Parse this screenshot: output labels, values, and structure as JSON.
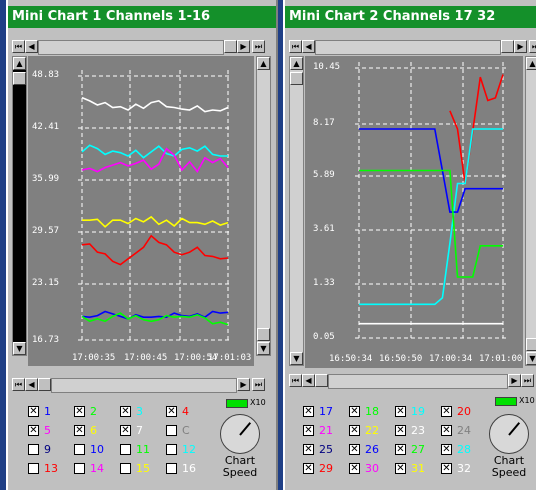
{
  "windows": [
    {
      "title": "Mini Chart 1 Channels 1-16",
      "y_ticks": [
        "48.83",
        "42.41",
        "35.99",
        "29.57",
        "23.15",
        "16.73"
      ],
      "x_ticks": [
        "17:00:35",
        "17:00:45",
        "17:00:54",
        "17:01:03"
      ],
      "channels": [
        {
          "label": "1",
          "checked": true,
          "color": "#0000ff"
        },
        {
          "label": "2",
          "checked": true,
          "color": "#00ff00"
        },
        {
          "label": "3",
          "checked": true,
          "color": "#00ffff"
        },
        {
          "label": "4",
          "checked": true,
          "color": "#ff0000"
        },
        {
          "label": "5",
          "checked": true,
          "color": "#ff00ff"
        },
        {
          "label": "6",
          "checked": true,
          "color": "#ffff00"
        },
        {
          "label": "7",
          "checked": true,
          "color": "#ffffff"
        },
        {
          "label": "C",
          "checked": false,
          "color": "#808080"
        },
        {
          "label": "9",
          "checked": false,
          "color": "#000080"
        },
        {
          "label": "10",
          "checked": false,
          "color": "#0000ff"
        },
        {
          "label": "11",
          "checked": false,
          "color": "#00ff00"
        },
        {
          "label": "12",
          "checked": false,
          "color": "#00ffff"
        },
        {
          "label": "13",
          "checked": false,
          "color": "#ff0000"
        },
        {
          "label": "14",
          "checked": false,
          "color": "#ff00ff"
        },
        {
          "label": "15",
          "checked": false,
          "color": "#ffff00"
        },
        {
          "label": "16",
          "checked": false,
          "color": "#ffffff"
        }
      ],
      "speed_label_1": "Chart",
      "speed_label_2": "Speed",
      "x10_label": "X10"
    },
    {
      "title": "Mini Chart 2 Channels 17 32",
      "y_ticks": [
        "10.45",
        "8.17",
        "5.89",
        "3.61",
        "1.33",
        "0.05"
      ],
      "x_ticks": [
        "16:50:34",
        "16:50:50",
        "17:00:34",
        "17:01:00"
      ],
      "channels": [
        {
          "label": "17",
          "checked": true,
          "color": "#0000ff"
        },
        {
          "label": "18",
          "checked": true,
          "color": "#00ff00"
        },
        {
          "label": "19",
          "checked": true,
          "color": "#00ffff"
        },
        {
          "label": "20",
          "checked": true,
          "color": "#ff0000"
        },
        {
          "label": "21",
          "checked": true,
          "color": "#ff00ff"
        },
        {
          "label": "22",
          "checked": true,
          "color": "#ffff00"
        },
        {
          "label": "23",
          "checked": true,
          "color": "#ffffff"
        },
        {
          "label": "24",
          "checked": true,
          "color": "#808080"
        },
        {
          "label": "25",
          "checked": true,
          "color": "#000080"
        },
        {
          "label": "26",
          "checked": true,
          "color": "#0000ff"
        },
        {
          "label": "27",
          "checked": true,
          "color": "#00ff00"
        },
        {
          "label": "28",
          "checked": true,
          "color": "#00ffff"
        },
        {
          "label": "29",
          "checked": true,
          "color": "#ff0000"
        },
        {
          "label": "30",
          "checked": true,
          "color": "#ff00ff"
        },
        {
          "label": "31",
          "checked": true,
          "color": "#ffff00"
        },
        {
          "label": "32",
          "checked": true,
          "color": "#ffffff"
        }
      ],
      "speed_label_1": "Chart",
      "speed_label_2": "Speed",
      "x10_label": "X10"
    }
  ],
  "chart_data": [
    {
      "type": "line",
      "ylim": [
        16.73,
        48.83
      ],
      "x": [
        0,
        1,
        2,
        3,
        4,
        5,
        6,
        7,
        8,
        9,
        10,
        11,
        12,
        13,
        14,
        15,
        16,
        17,
        18,
        19
      ],
      "series": [
        {
          "color": "#ffffff",
          "values": [
            46.2,
            45.8,
            45.3,
            45.6,
            45.0,
            45.1,
            44.7,
            45.4,
            44.9,
            45.6,
            45.8,
            45.1,
            45.0,
            44.8,
            44.7,
            45.2,
            44.5,
            44.7,
            44.6,
            45.0
          ]
        },
        {
          "color": "#00ffff",
          "values": [
            39.6,
            40.4,
            40.0,
            39.3,
            39.7,
            39.5,
            39.1,
            39.8,
            38.9,
            39.6,
            40.3,
            39.4,
            39.1,
            39.9,
            40.1,
            39.7,
            40.3,
            39.3,
            39.1,
            39.1
          ]
        },
        {
          "color": "#ff00ff",
          "values": [
            37.4,
            37.6,
            37.2,
            37.7,
            38.0,
            38.3,
            37.9,
            38.2,
            38.6,
            37.5,
            38.1,
            40.0,
            39.2,
            37.4,
            38.4,
            37.2,
            38.9,
            38.3,
            38.8,
            37.7
          ]
        },
        {
          "color": "#ffff00",
          "values": [
            31.3,
            31.3,
            31.4,
            30.5,
            31.3,
            31.3,
            30.9,
            31.5,
            31.1,
            31.7,
            30.8,
            31.3,
            30.6,
            31.5,
            31.0,
            31.0,
            30.8,
            31.2,
            30.7,
            31.0
          ]
        },
        {
          "color": "#ff0000",
          "values": [
            28.3,
            28.4,
            27.4,
            27.2,
            26.3,
            25.9,
            26.6,
            27.3,
            28.0,
            29.4,
            28.6,
            28.3,
            27.4,
            27.1,
            27.4,
            28.0,
            27.0,
            26.9,
            26.6,
            26.7
          ]
        },
        {
          "color": "#0000ff",
          "values": [
            19.6,
            19.5,
            19.7,
            20.2,
            19.9,
            19.6,
            19.3,
            19.8,
            19.5,
            19.5,
            19.6,
            19.5,
            20.0,
            19.7,
            19.6,
            19.9,
            19.5,
            20.2,
            20.0,
            20.1
          ]
        },
        {
          "color": "#00ff00",
          "values": [
            19.6,
            19.0,
            19.3,
            19.0,
            19.6,
            20.0,
            19.3,
            19.7,
            19.2,
            19.0,
            19.2,
            19.7,
            19.5,
            19.6,
            19.5,
            19.8,
            19.4,
            18.7,
            18.9,
            18.6
          ]
        }
      ]
    },
    {
      "type": "line",
      "ylim": [
        0.05,
        10.45
      ],
      "x": [
        0,
        1,
        2,
        3,
        4,
        5,
        6,
        7,
        8,
        9,
        10,
        11,
        12,
        13,
        14,
        15,
        16,
        17,
        18,
        19
      ],
      "series": [
        {
          "color": "#ff0000",
          "values": [
            null,
            null,
            null,
            null,
            null,
            null,
            null,
            null,
            null,
            null,
            null,
            null,
            8.8,
            8.1,
            6.0,
            8.0,
            10.1,
            9.2,
            9.3,
            10.2
          ]
        },
        {
          "color": "#00ffff",
          "values": [
            1.35,
            1.35,
            1.35,
            1.35,
            1.35,
            1.35,
            1.35,
            1.35,
            1.35,
            1.35,
            1.35,
            1.6,
            3.7,
            6.0,
            6.0,
            8.1,
            8.1,
            8.1,
            8.1,
            8.1
          ]
        },
        {
          "color": "#0000ff",
          "values": [
            8.1,
            8.1,
            8.1,
            8.1,
            8.1,
            8.1,
            8.1,
            8.1,
            8.1,
            8.1,
            8.1,
            6.5,
            4.9,
            4.9,
            5.8,
            5.8,
            5.8,
            5.8,
            5.8,
            5.8
          ]
        },
        {
          "color": "#00ff00",
          "values": [
            6.5,
            6.5,
            6.5,
            6.5,
            6.5,
            6.5,
            6.5,
            6.5,
            6.5,
            6.5,
            6.5,
            6.5,
            6.5,
            2.4,
            2.4,
            2.4,
            3.6,
            3.6,
            3.6,
            3.6
          ]
        },
        {
          "color": "#ffffff",
          "values": [
            0.6,
            0.6,
            0.6,
            0.6,
            0.6,
            0.6,
            0.6,
            0.6,
            0.6,
            0.6,
            0.6,
            0.6,
            0.6,
            0.6,
            0.6,
            0.6,
            0.6,
            0.6,
            0.6,
            0.6
          ]
        }
      ]
    }
  ]
}
